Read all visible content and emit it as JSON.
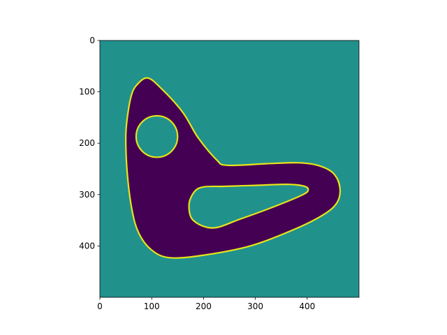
{
  "chart_data": {
    "type": "image",
    "title": "",
    "xlabel": "",
    "ylabel": "",
    "xlim": [
      0,
      500
    ],
    "ylim": [
      500,
      0
    ],
    "x_ticks": [
      0,
      100,
      200,
      300,
      400
    ],
    "y_ticks": [
      0,
      100,
      200,
      300,
      400
    ],
    "x_tick_labels": [
      "0",
      "100",
      "200",
      "300",
      "400"
    ],
    "y_tick_labels": [
      "0",
      "100",
      "200",
      "300",
      "400"
    ],
    "y_inverted": true,
    "grid": false,
    "legend": "none",
    "colormap": "viridis",
    "colors": {
      "background": "#21918c",
      "interior": "#440154",
      "contour": "#e7e419"
    },
    "regions": {
      "outer_blob": [
        [
          92,
          73
        ],
        [
          70,
          88
        ],
        [
          60,
          110
        ],
        [
          53,
          150
        ],
        [
          50,
          190
        ],
        [
          53,
          260
        ],
        [
          62,
          330
        ],
        [
          75,
          375
        ],
        [
          100,
          408
        ],
        [
          135,
          423
        ],
        [
          200,
          418
        ],
        [
          290,
          400
        ],
        [
          370,
          370
        ],
        [
          430,
          340
        ],
        [
          458,
          315
        ],
        [
          463,
          285
        ],
        [
          450,
          258
        ],
        [
          420,
          243
        ],
        [
          380,
          238
        ],
        [
          320,
          240
        ],
        [
          245,
          243
        ],
        [
          225,
          232
        ],
        [
          190,
          190
        ],
        [
          160,
          140
        ],
        [
          120,
          95
        ]
      ],
      "circle_hole": {
        "center": [
          110,
          187
        ],
        "radius": 40
      },
      "inner_hole": [
        [
          200,
          285
        ],
        [
          182,
          295
        ],
        [
          172,
          320
        ],
        [
          180,
          350
        ],
        [
          218,
          365
        ],
        [
          270,
          348
        ],
        [
          340,
          322
        ],
        [
          392,
          300
        ],
        [
          402,
          290
        ],
        [
          392,
          283
        ],
        [
          360,
          280
        ],
        [
          300,
          282
        ],
        [
          240,
          284
        ]
      ]
    }
  }
}
